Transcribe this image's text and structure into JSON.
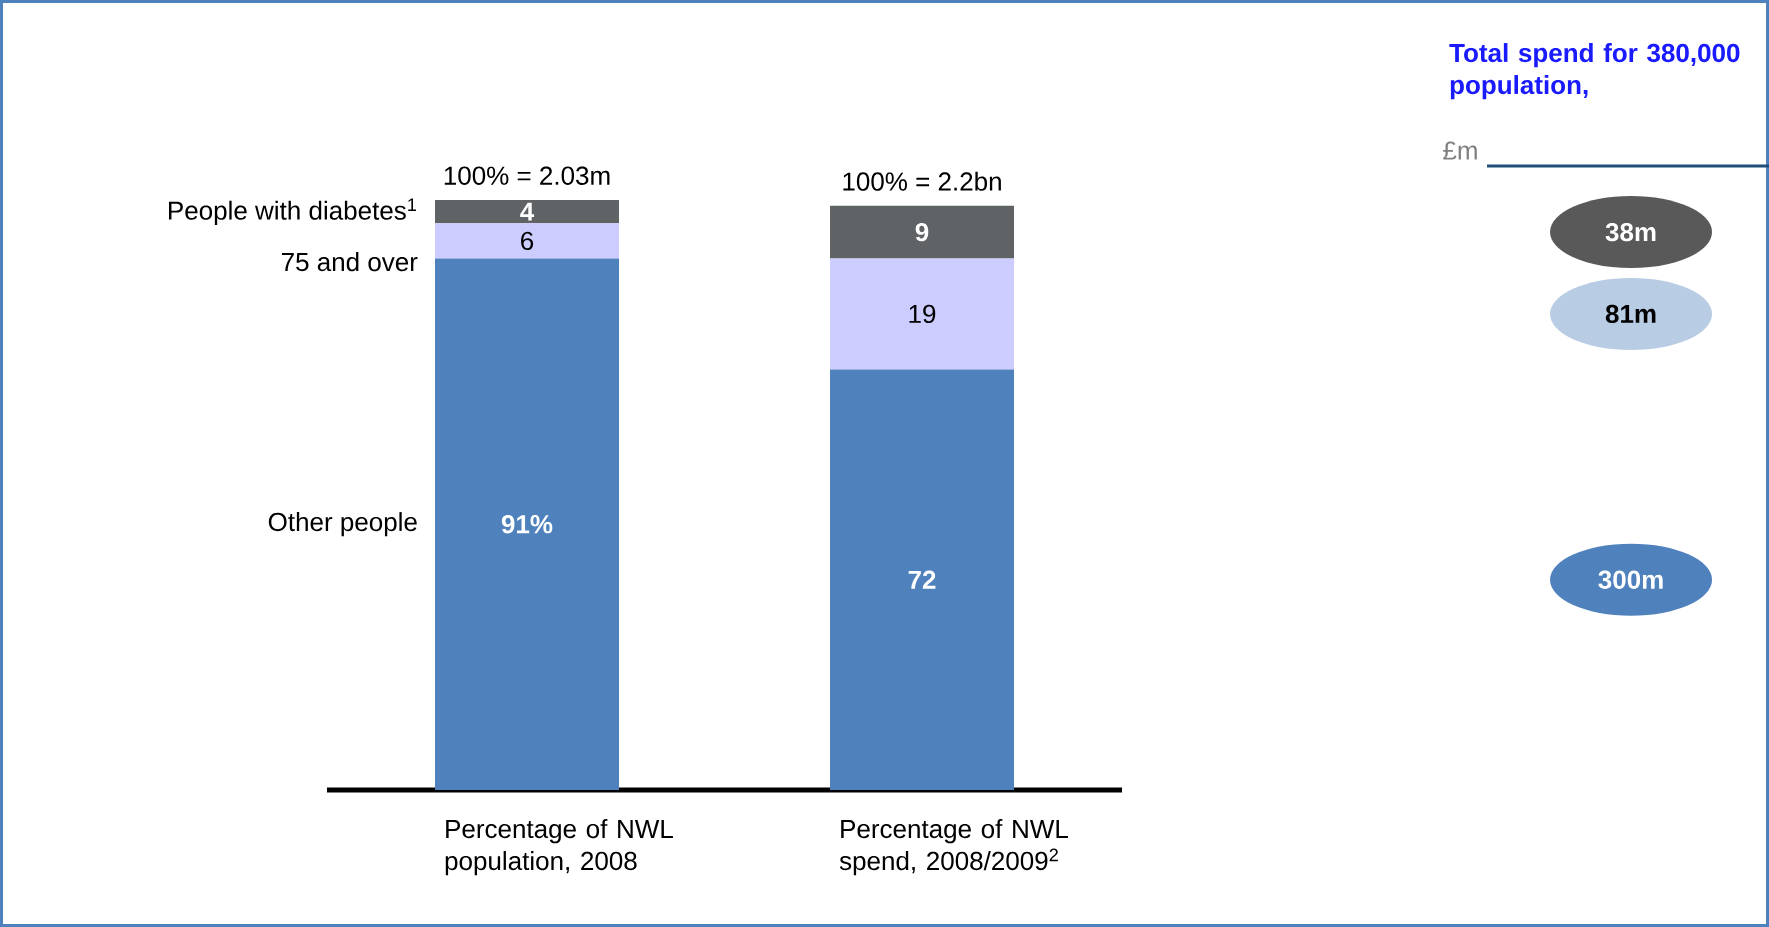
{
  "chart_data": [
    {
      "type": "bar",
      "stacked": true,
      "categories": [
        "Percentage of NWL population, 2008",
        "Percentage of NWL spend, 2008/2009$^{2}$"
      ],
      "series": [
        {
          "name": "Other people",
          "color": "#4f81bd",
          "values": [
            91,
            72
          ],
          "value_labels": [
            "91%",
            "72"
          ]
        },
        {
          "name": "75 and over",
          "color": "#ccccff",
          "values": [
            6,
            19
          ],
          "value_labels": [
            "6",
            "19"
          ]
        },
        {
          "name": "People with diabetes$^{1}$",
          "color": "#5f6366",
          "values": [
            4,
            9
          ],
          "value_labels": [
            "4",
            "9"
          ]
        }
      ],
      "annotations": [
        "100% = 2.03m",
        "100% = 2.2bn"
      ]
    },
    {
      "type": "other",
      "title": "Total spend for 380,000 population,",
      "subtitle": "£m",
      "value_labels": [
        "38m",
        "81m",
        "300m"
      ],
      "colors": [
        "#595959",
        "#b8cce4",
        "#4f81bd"
      ]
    }
  ]
}
